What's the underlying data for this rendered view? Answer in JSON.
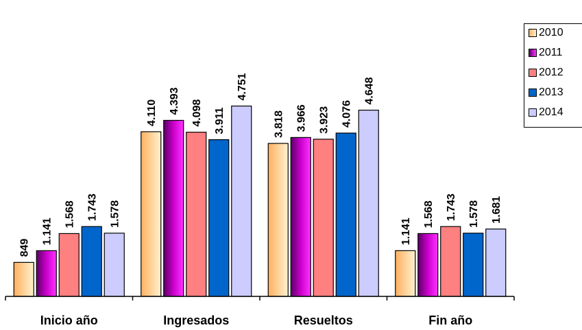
{
  "chart_data": {
    "type": "bar",
    "categories": [
      "Inicio año",
      "Ingresados",
      "Resueltos",
      "Fin año"
    ],
    "series": [
      {
        "name": "2010",
        "values": [
          849,
          4110,
          3818,
          1141
        ],
        "labels": [
          "849",
          "4.110",
          "3.818",
          "1.141"
        ],
        "color": "#ffc875"
      },
      {
        "name": "2011",
        "values": [
          1141,
          4393,
          3966,
          1568
        ],
        "labels": [
          "1.141",
          "4.393",
          "3.966",
          "1.568"
        ],
        "color": "#9a0099"
      },
      {
        "name": "2012",
        "values": [
          1568,
          4098,
          3923,
          1743
        ],
        "labels": [
          "1.568",
          "4.098",
          "3.923",
          "1.743"
        ],
        "color": "#ff8080"
      },
      {
        "name": "2013",
        "values": [
          1743,
          3911,
          4076,
          1578
        ],
        "labels": [
          "1.743",
          "3.911",
          "4.076",
          "1.578"
        ],
        "color": "#0066cc"
      },
      {
        "name": "2014",
        "values": [
          1578,
          4751,
          4648,
          1681
        ],
        "labels": [
          "1.578",
          "4.751",
          "4.648",
          "1.681"
        ],
        "color": "#ccccff"
      }
    ],
    "ylim": [
      0,
      5000
    ],
    "grid": false,
    "legend_position": "top-right"
  }
}
